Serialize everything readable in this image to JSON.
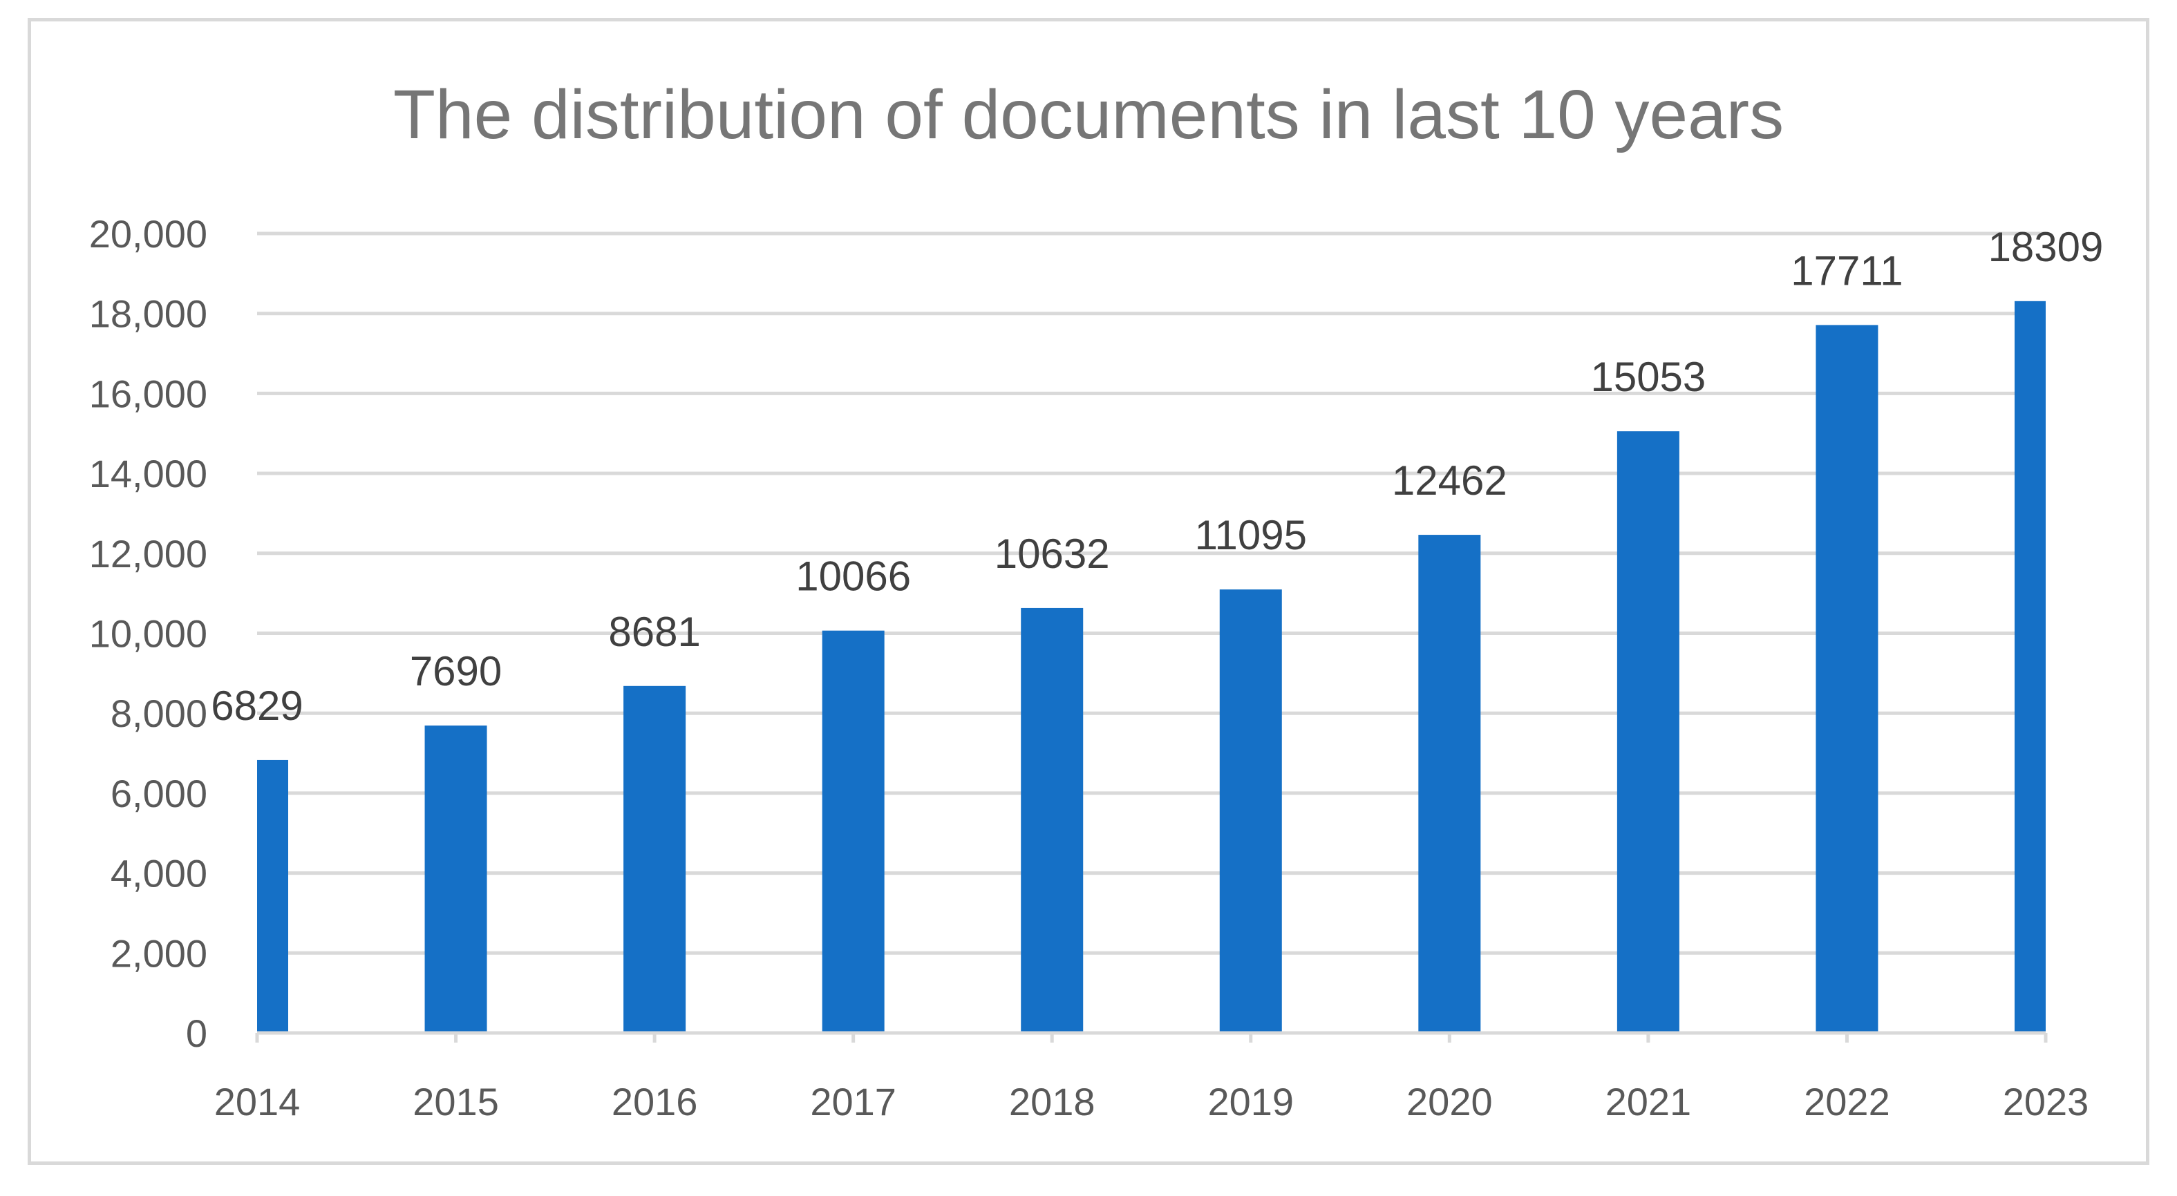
{
  "chart_data": {
    "type": "bar",
    "title": "The distribution of documents in last 10 years",
    "xlabel": "",
    "ylabel": "",
    "categories": [
      "2014",
      "2015",
      "2016",
      "2017",
      "2018",
      "2019",
      "2020",
      "2021",
      "2022",
      "2023"
    ],
    "values": [
      6829,
      7690,
      8681,
      10066,
      10632,
      11095,
      12462,
      15053,
      17711,
      18309
    ],
    "data_labels": [
      "6829",
      "7690",
      "8681",
      "10066",
      "10632",
      "11095",
      "12462",
      "15053",
      "17711",
      "18309"
    ],
    "ylim": [
      0,
      20000
    ],
    "y_ticks": [
      0,
      2000,
      4000,
      6000,
      8000,
      10000,
      12000,
      14000,
      16000,
      18000,
      20000
    ],
    "y_tick_labels": [
      "0",
      "2,000",
      "4,000",
      "6,000",
      "8,000",
      "10,000",
      "12,000",
      "14,000",
      "16,000",
      "18,000",
      "20,000"
    ],
    "grid": true,
    "legend": "none",
    "colors": {
      "bar": "#1570c6",
      "grid": "#d9d9d9",
      "axis": "#d9d9d9",
      "title": "#767676",
      "tick_label": "#595959",
      "data_label": "#404040"
    }
  }
}
